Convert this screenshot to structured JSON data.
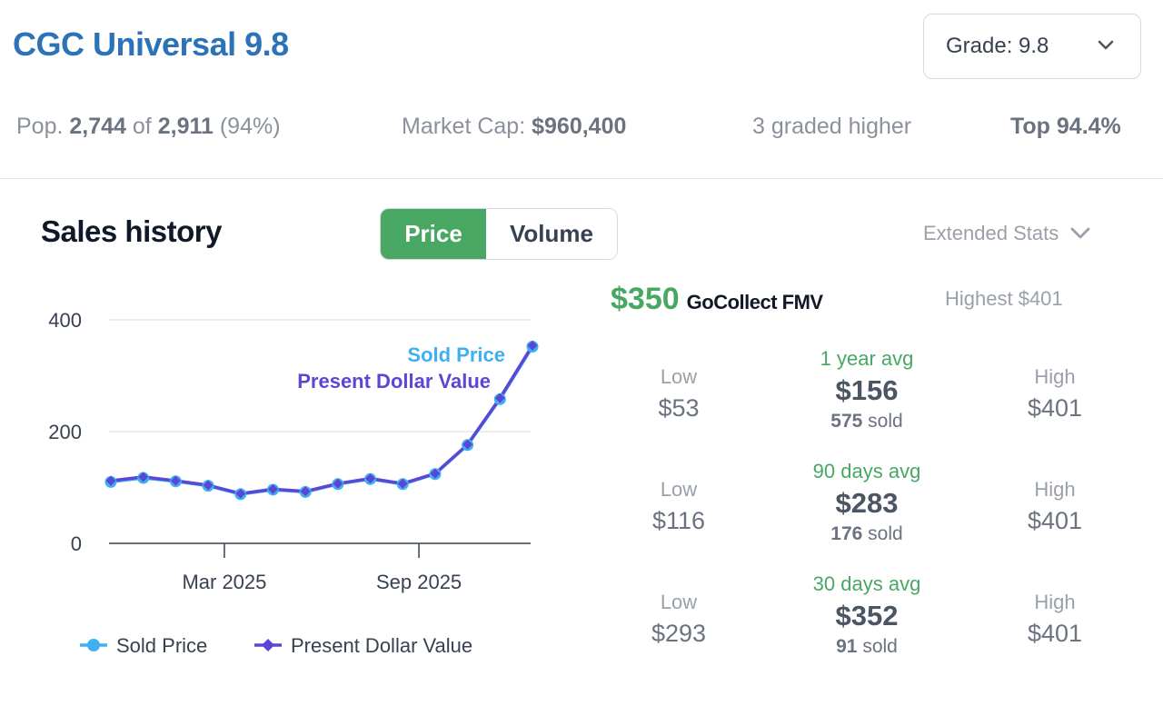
{
  "header": {
    "title": "CGC Universal 9.8",
    "grade_select": "Grade: 9.8"
  },
  "stats": {
    "pop_label": "Pop.",
    "pop_count": "2,744",
    "pop_of": "of",
    "pop_total": "2,911",
    "pop_pct": "(94%)",
    "market_cap_label": "Market Cap:",
    "market_cap_value": "$960,400",
    "graded_higher": "3 graded higher",
    "top": "Top 94.4%"
  },
  "sales": {
    "title": "Sales history",
    "tabs": [
      "Price",
      "Volume"
    ],
    "active_tab": "Price",
    "extended_stats": "Extended Stats"
  },
  "fmv": {
    "value": "$350",
    "label": "GoCollect FMV",
    "highest": "Highest $401"
  },
  "periods": [
    {
      "low_label": "Low",
      "low": "$53",
      "avg_label": "1 year avg",
      "avg": "$156",
      "sold_count": "575",
      "sold_label": "sold",
      "high_label": "High",
      "high": "$401"
    },
    {
      "low_label": "Low",
      "low": "$116",
      "avg_label": "90 days avg",
      "avg": "$283",
      "sold_count": "176",
      "sold_label": "sold",
      "high_label": "High",
      "high": "$401"
    },
    {
      "low_label": "Low",
      "low": "$293",
      "avg_label": "30 days avg",
      "avg": "$352",
      "sold_count": "91",
      "sold_label": "sold",
      "high_label": "High",
      "high": "$401"
    }
  ],
  "colors": {
    "accent_blue": "#2b72b8",
    "green": "#48a763",
    "sold_price": "#3fb0f0",
    "present_value": "#5a47d6"
  },
  "chart_data": {
    "type": "line",
    "ylim": [
      0,
      400
    ],
    "yticks": [
      0,
      200,
      400
    ],
    "xtick_labels": [
      "Mar 2025",
      "Sep 2025"
    ],
    "xtick_positions": [
      3.5,
      9.5
    ],
    "x": [
      0,
      1,
      2,
      3,
      4,
      5,
      6,
      7,
      8,
      9,
      10,
      11,
      12,
      13
    ],
    "grid": true,
    "legend_position": "bottom",
    "inline_labels": [
      "Sold Price",
      "Present Dollar Value"
    ],
    "series": [
      {
        "name": "Sold Price",
        "values": [
          110,
          117,
          111,
          103,
          88,
          96,
          92,
          106,
          115,
          106,
          124,
          176,
          258,
          352
        ]
      },
      {
        "name": "Present Dollar Value",
        "values": [
          112,
          119,
          112,
          104,
          89,
          97,
          93,
          107,
          116,
          107,
          125,
          177,
          260,
          354
        ]
      }
    ]
  }
}
